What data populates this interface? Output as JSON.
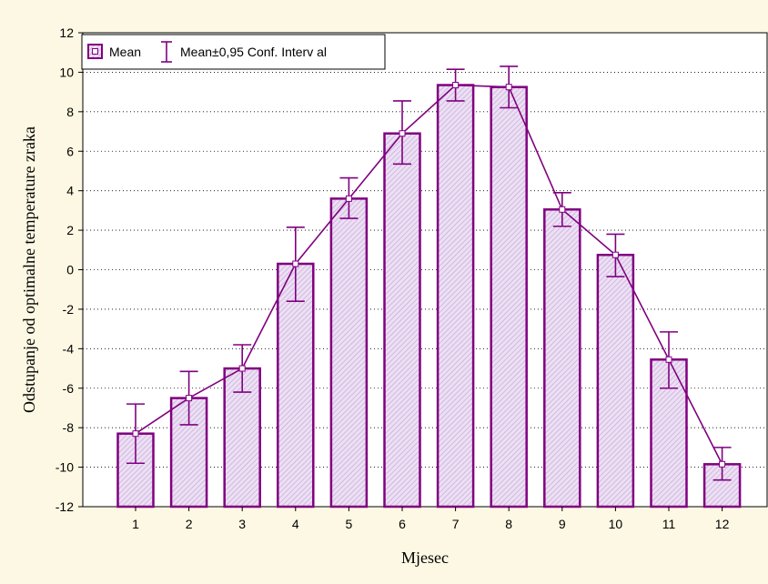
{
  "chart_data": {
    "type": "bar",
    "xlabel": "Mjesec",
    "ylabel": "Odstupanje od optimalne temperature zraka",
    "ylim": [
      -12,
      12
    ],
    "yticks": [
      -12,
      -10,
      -8,
      -6,
      -4,
      -2,
      0,
      2,
      4,
      6,
      8,
      10,
      12
    ],
    "categories": [
      "1",
      "2",
      "3",
      "4",
      "5",
      "6",
      "7",
      "8",
      "9",
      "10",
      "11",
      "12"
    ],
    "series": [
      {
        "name": "Mean",
        "values": [
          -8.3,
          -6.5,
          -5.0,
          0.3,
          3.6,
          6.9,
          9.35,
          9.25,
          3.05,
          0.75,
          -4.55,
          -9.85
        ],
        "ci_lower": [
          -9.8,
          -7.85,
          -6.2,
          -1.6,
          2.6,
          5.35,
          8.55,
          8.2,
          2.2,
          -0.35,
          -6.0,
          -10.65
        ],
        "ci_upper": [
          -6.8,
          -5.15,
          -3.8,
          2.15,
          4.65,
          8.55,
          10.15,
          10.3,
          3.9,
          1.8,
          -3.15,
          -9.0
        ]
      }
    ],
    "legend": {
      "position": "top-left",
      "mean_label": "Mean",
      "ci_label": "Mean±0,95 Conf. Interv al"
    },
    "grid": true,
    "colors": {
      "bar_fill": "#ece0f4",
      "bar_hatch": "#c8a8d6",
      "line": "#800080",
      "plot_bg": "#ffffff",
      "page_bg": "#fdf8e3"
    }
  }
}
